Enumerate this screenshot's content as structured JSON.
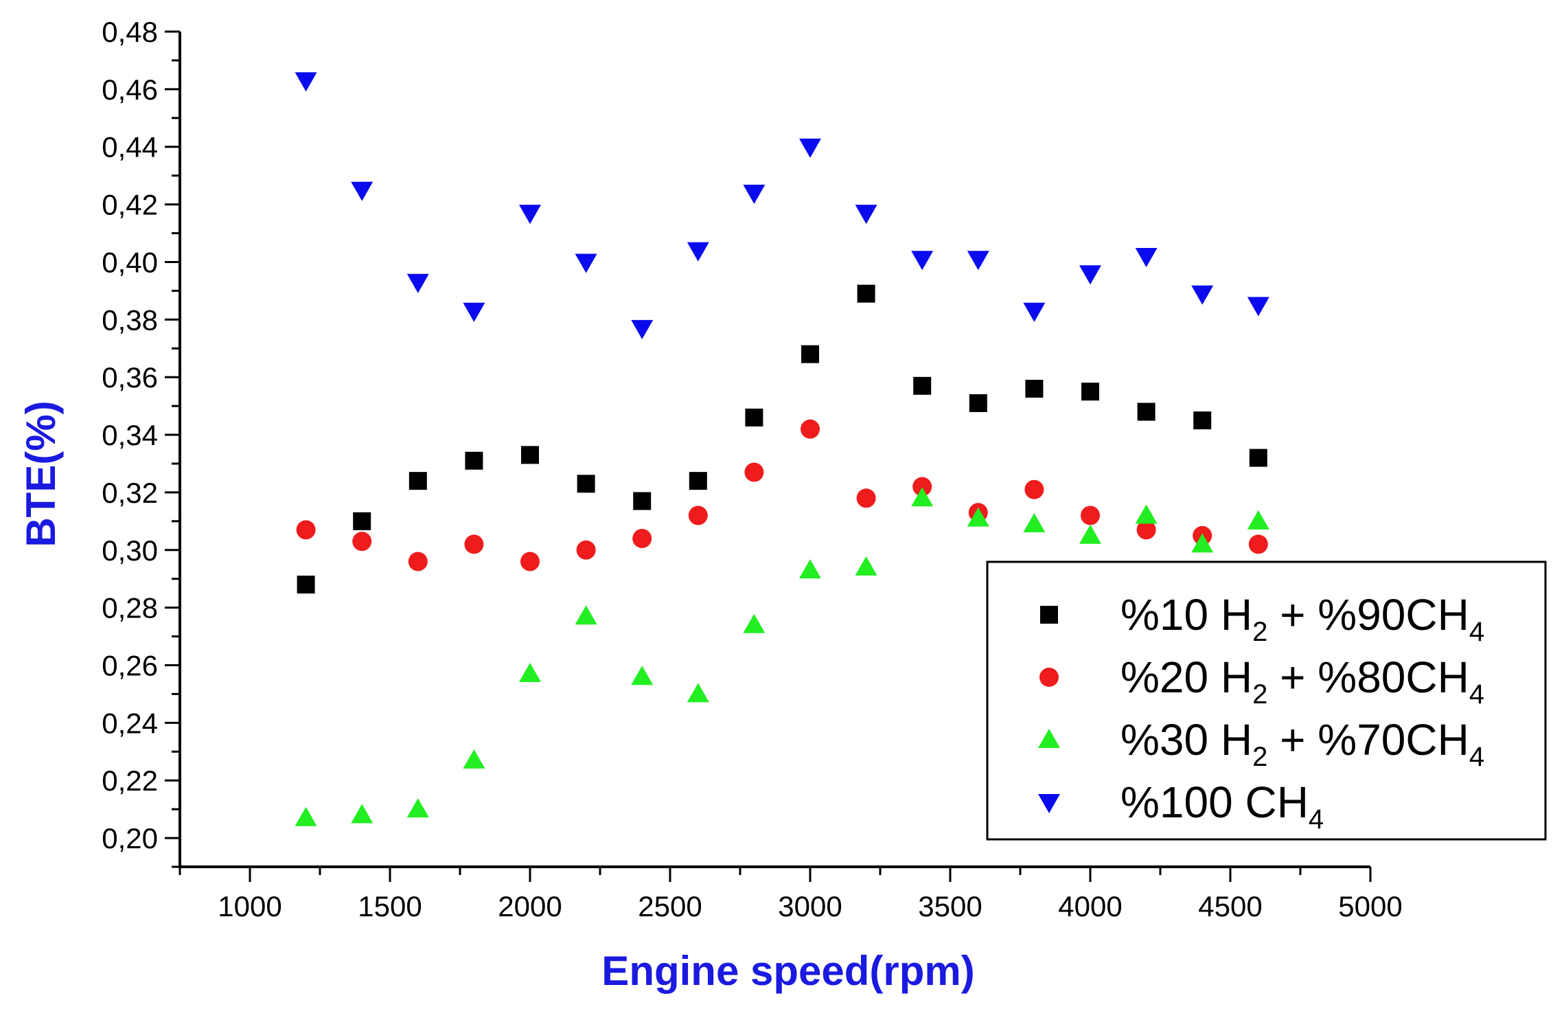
{
  "chart_data": {
    "type": "scatter",
    "title": "",
    "xlabel": "Engine speed(rpm)",
    "ylabel": "BTE(%)",
    "xlim": [
      750,
      5000
    ],
    "ylim": [
      0.19,
      0.48
    ],
    "x_ticks": [
      1000,
      1500,
      2000,
      2500,
      3000,
      3500,
      4000,
      4500,
      5000
    ],
    "x_tick_labels": [
      "1000",
      "1500",
      "2000",
      "2500",
      "3000",
      "3500",
      "4000",
      "4500",
      "5000"
    ],
    "y_ticks": [
      0.2,
      0.22,
      0.24,
      0.26,
      0.28,
      0.3,
      0.32,
      0.34,
      0.36,
      0.38,
      0.4,
      0.42,
      0.44,
      0.46,
      0.48
    ],
    "y_tick_labels": [
      "0,20",
      "0,22",
      "0,24",
      "0,26",
      "0,28",
      "0,30",
      "0,32",
      "0,34",
      "0,36",
      "0,38",
      "0,40",
      "0,42",
      "0,44",
      "0,46",
      "0,48"
    ],
    "grid": false,
    "legend_position": "bottom-right",
    "x": [
      1200,
      1400,
      1600,
      1800,
      2000,
      2200,
      2400,
      2600,
      2800,
      3000,
      3200,
      3400,
      3600,
      3800,
      4000,
      4200,
      4400,
      4600
    ],
    "series": [
      {
        "name": "%10 H2 + %90CH4",
        "legend_parts": [
          "%10 H",
          "2",
          " + %90CH",
          "4"
        ],
        "marker": "square",
        "color": "#000000",
        "values": [
          0.288,
          0.31,
          0.324,
          0.331,
          0.333,
          0.323,
          0.317,
          0.324,
          0.346,
          0.368,
          0.389,
          0.357,
          0.351,
          0.356,
          0.355,
          0.348,
          0.345,
          0.332
        ]
      },
      {
        "name": "%20 H2 + %80CH4",
        "legend_parts": [
          "%20 H",
          "2",
          " + %80CH",
          "4"
        ],
        "marker": "circle",
        "color": "#ee1c1c",
        "values": [
          0.307,
          0.303,
          0.296,
          0.302,
          0.296,
          0.3,
          0.304,
          0.312,
          0.327,
          0.342,
          0.318,
          0.322,
          0.313,
          0.321,
          0.312,
          0.307,
          0.305,
          0.302
        ]
      },
      {
        "name": "%30 H2 + %70CH4",
        "legend_parts": [
          "%30 H",
          "2",
          " + %70CH",
          "4"
        ],
        "marker": "triangle-up",
        "color": "#22ee22",
        "values": [
          0.207,
          0.208,
          0.21,
          0.227,
          0.257,
          0.277,
          0.256,
          0.25,
          0.274,
          0.293,
          0.294,
          0.318,
          0.311,
          0.309,
          0.305,
          0.312,
          0.302,
          0.31
        ]
      },
      {
        "name": "%100 CH4",
        "legend_parts": [
          "%100 CH",
          "4",
          "",
          ""
        ],
        "marker": "triangle-down",
        "color": "#0a0aee",
        "values": [
          0.463,
          0.425,
          0.393,
          0.383,
          0.417,
          0.4,
          0.377,
          0.404,
          0.424,
          0.44,
          0.417,
          0.401,
          0.401,
          0.383,
          0.396,
          0.402,
          0.389,
          0.385
        ]
      }
    ],
    "colors": {
      "axis": "#000000",
      "axis_title": "#1a1ae0",
      "legend_border": "#000000"
    }
  }
}
